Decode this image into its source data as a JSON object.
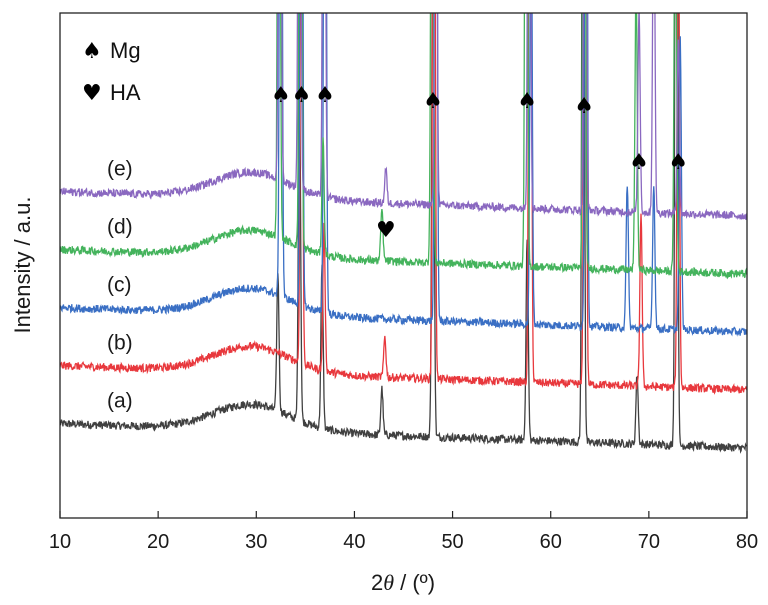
{
  "chart_data": {
    "type": "line",
    "xlabel_prefix": "2",
    "xlabel_symbol": "θ",
    "xlabel_suffix": " / (º)",
    "ylabel": "Intensity / a.u.",
    "xlim": [
      10,
      80
    ],
    "xticks": [
      10,
      20,
      30,
      40,
      50,
      60,
      70,
      80
    ],
    "yticks_shown": false,
    "grid": false,
    "legend_position": "top-left",
    "legend": [
      {
        "symbol": "♠",
        "label": "Mg"
      },
      {
        "symbol": "♥",
        "label": "HA"
      }
    ],
    "series": [
      {
        "name": "(a)",
        "color": "#404040",
        "baseline": 0.8,
        "peaks": [
          [
            32.2,
            2.4
          ],
          [
            34.4,
            6
          ],
          [
            36.7,
            2.8
          ],
          [
            42.8,
            0.8
          ],
          [
            48.0,
            10
          ],
          [
            57.6,
            3.5
          ],
          [
            63.3,
            16
          ],
          [
            68.8,
            1.2
          ],
          [
            72.8,
            20
          ]
        ]
      },
      {
        "name": "(b)",
        "color": "#e8383d",
        "baseline": 1.8,
        "peaks": [
          [
            34.6,
            10
          ],
          [
            36.9,
            2.5
          ],
          [
            43.1,
            0.7
          ],
          [
            48.1,
            16
          ],
          [
            57.9,
            19
          ],
          [
            63.5,
            16
          ],
          [
            69.2,
            3
          ],
          [
            73.0,
            9
          ]
        ]
      },
      {
        "name": "(c)",
        "color": "#3a6fc4",
        "baseline": 2.8,
        "peaks": [
          [
            32.5,
            16
          ],
          [
            34.6,
            16
          ],
          [
            37.0,
            16
          ],
          [
            48.3,
            16
          ],
          [
            58.0,
            8
          ],
          [
            63.6,
            16
          ],
          [
            67.8,
            2.5
          ],
          [
            70.5,
            2.5
          ],
          [
            73.2,
            5
          ]
        ]
      },
      {
        "name": "(d)",
        "color": "#44b35c",
        "baseline": 3.8,
        "peaks": [
          [
            32.3,
            16
          ],
          [
            34.5,
            16
          ],
          [
            36.8,
            2
          ],
          [
            42.8,
            0.9
          ],
          [
            47.9,
            11
          ],
          [
            57.5,
            16
          ],
          [
            63.4,
            16
          ],
          [
            68.7,
            5
          ],
          [
            72.7,
            8
          ]
        ]
      },
      {
        "name": "(e)",
        "color": "#8a68c0",
        "baseline": 4.8,
        "peaks": [
          [
            32.4,
            16
          ],
          [
            34.4,
            16
          ],
          [
            36.9,
            16
          ],
          [
            43.2,
            0.6
          ],
          [
            48.3,
            10
          ],
          [
            57.8,
            16
          ],
          [
            63.5,
            16
          ],
          [
            69.0,
            3.5
          ],
          [
            70.5,
            6
          ],
          [
            73.0,
            3
          ]
        ]
      }
    ],
    "markers": [
      {
        "symbol": "♠",
        "x": 32.5
      },
      {
        "symbol": "♠",
        "x": 34.6
      },
      {
        "symbol": "♠",
        "x": 37.0
      },
      {
        "symbol": "♠",
        "x": 48.0
      },
      {
        "symbol": "♠",
        "x": 57.6
      },
      {
        "symbol": "♠",
        "x": 63.4
      },
      {
        "symbol": "♠",
        "x": 69.0
      },
      {
        "symbol": "♠",
        "x": 73.0
      },
      {
        "symbol": "♥",
        "x": 43.2
      }
    ]
  }
}
